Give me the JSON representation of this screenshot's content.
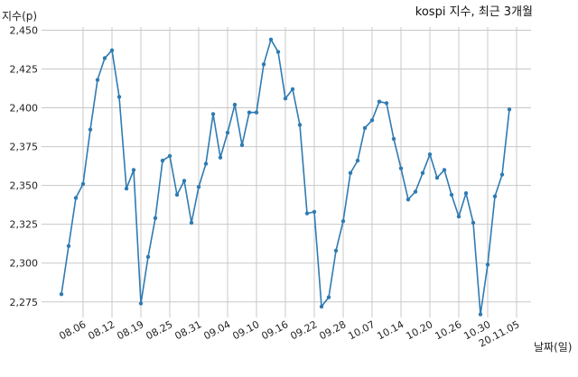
{
  "chart_data": {
    "type": "line",
    "title": "kospi 지수, 최근 3개월",
    "xlabel": "날짜(일)",
    "ylabel": "지수(p)",
    "ylim": [
      2265,
      2452
    ],
    "yticks": [
      2275,
      2300,
      2325,
      2350,
      2375,
      2400,
      2425,
      2450
    ],
    "ytick_labels": [
      "2,275",
      "2,300",
      "2,325",
      "2,350",
      "2,375",
      "2,400",
      "2,425",
      "2,450"
    ],
    "xticks": [
      {
        "label": "08.06",
        "index": 3
      },
      {
        "label": "08.12",
        "index": 7
      },
      {
        "label": "08.19",
        "index": 11
      },
      {
        "label": "08.25",
        "index": 15
      },
      {
        "label": "08.31",
        "index": 19
      },
      {
        "label": "09.04",
        "index": 23
      },
      {
        "label": "09.10",
        "index": 27
      },
      {
        "label": "09.16",
        "index": 31
      },
      {
        "label": "09.22",
        "index": 35
      },
      {
        "label": "09.28",
        "index": 39
      },
      {
        "label": "10.07",
        "index": 43
      },
      {
        "label": "10.14",
        "index": 47
      },
      {
        "label": "10.20",
        "index": 51
      },
      {
        "label": "10.26",
        "index": 55
      },
      {
        "label": "10.30",
        "index": 59
      },
      {
        "label": "20.11.05",
        "index": 63
      }
    ],
    "grid": true,
    "color": "#2f7bb2",
    "values": [
      2280,
      2311,
      2342,
      2351,
      2386,
      2418,
      2432,
      2437,
      2407,
      2348,
      2360,
      2274,
      2304,
      2329,
      2366,
      2369,
      2344,
      2353,
      2326,
      2349,
      2364,
      2396,
      2368,
      2384,
      2402,
      2376,
      2397,
      2397,
      2428,
      2444,
      2436,
      2406,
      2412,
      2389,
      2332,
      2333,
      2272,
      2278,
      2308,
      2327,
      2358,
      2366,
      2387,
      2392,
      2404,
      2403,
      2380,
      2361,
      2341,
      2346,
      2358,
      2370,
      2355,
      2360,
      2344,
      2330,
      2345,
      2326,
      2267,
      2299,
      2343,
      2357,
      2399
    ]
  }
}
